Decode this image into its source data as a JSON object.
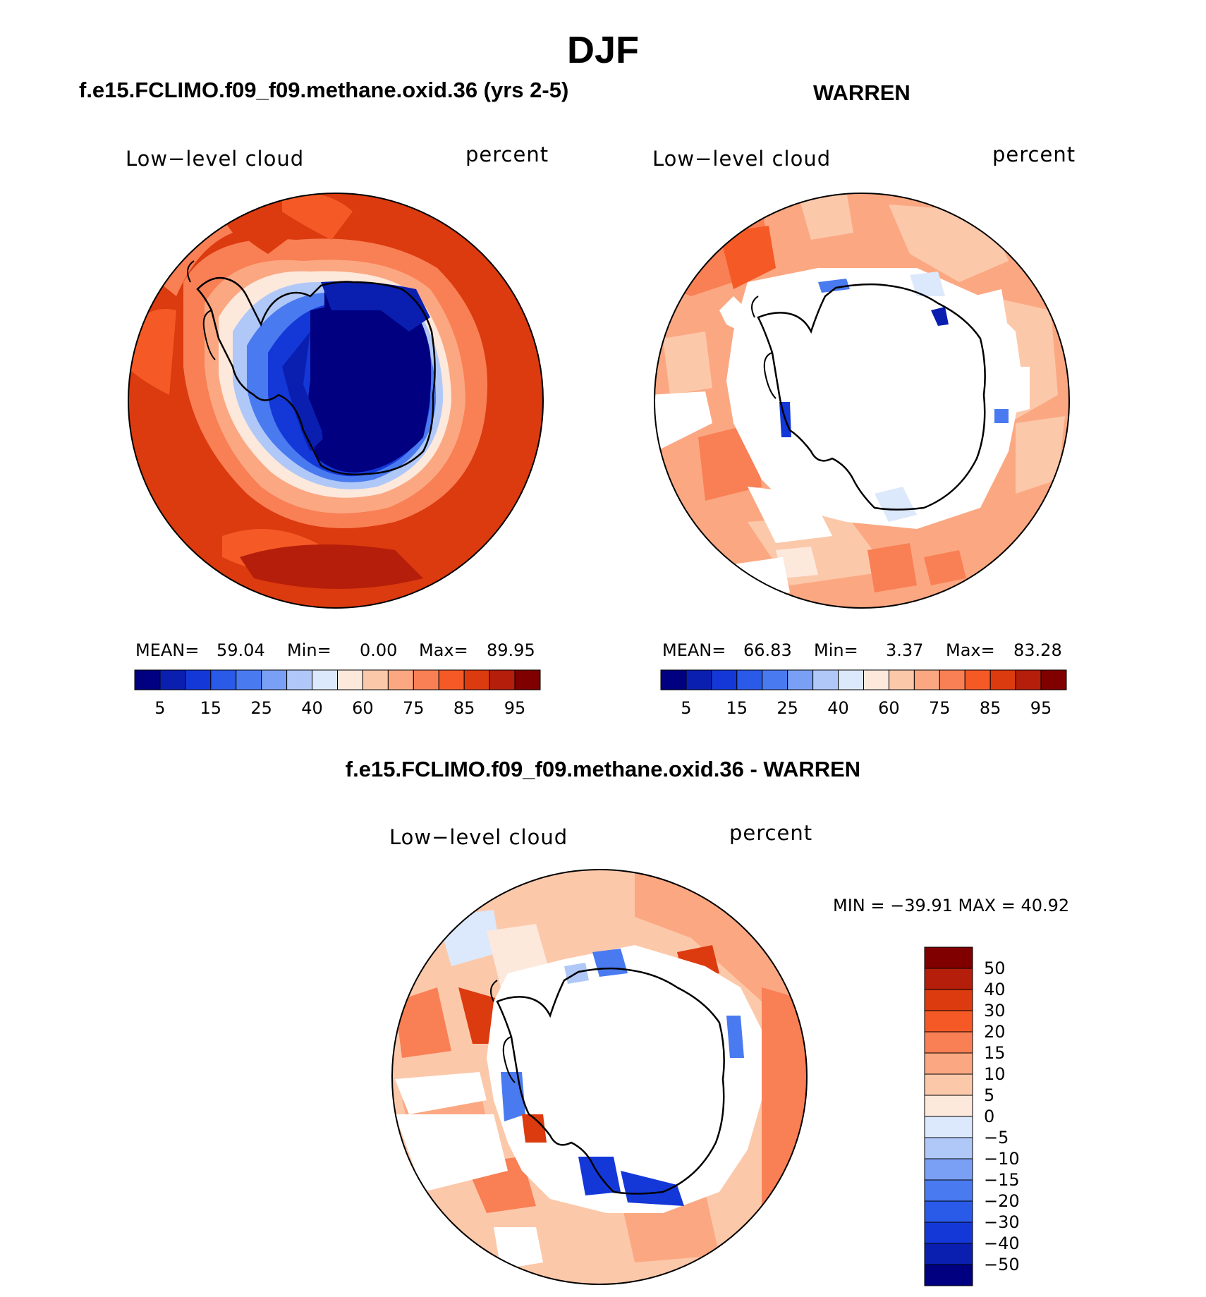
{
  "title": "DJF",
  "panel_left": {
    "case_title": "f.e15.FCLIMO.f09_f09.methane.oxid.36 (yrs 2-5)",
    "field_label": "Low−level cloud",
    "units_label": "percent",
    "stats": {
      "mean_label": "MEAN=",
      "mean_value": "59.04",
      "min_label": "Min=",
      "min_value": "0.00",
      "max_label": "Max=",
      "max_value": "89.95"
    }
  },
  "panel_right": {
    "case_title": "WARREN",
    "field_label": "Low−level cloud",
    "units_label": "percent",
    "stats": {
      "mean_label": "MEAN=",
      "mean_value": "66.83",
      "min_label": "Min=",
      "min_value": "3.37",
      "max_label": "Max=",
      "max_value": "83.28"
    }
  },
  "panel_diff": {
    "case_title": "f.e15.FCLIMO.f09_f09.methane.oxid.36 - WARREN",
    "field_label": "Low−level cloud",
    "units_label": "percent",
    "range_text": "MIN = −39.91 MAX =   40.92"
  },
  "colorbar_top": {
    "colors": [
      "#000080",
      "#0a1fb0",
      "#1438d8",
      "#2a5ae8",
      "#4a7af0",
      "#7aa0f5",
      "#b0c8f8",
      "#dce9fc",
      "#fde8dc",
      "#fcc8aa",
      "#fba882",
      "#f97f55",
      "#f55a26",
      "#dc3a0f",
      "#b41e0a",
      "#800000"
    ],
    "tick_labels": [
      "5",
      "15",
      "25",
      "40",
      "60",
      "75",
      "85",
      "95"
    ]
  },
  "colorbar_diff": {
    "colors": [
      "#800000",
      "#b41e0a",
      "#dc3a0f",
      "#f55a26",
      "#f97f55",
      "#fba882",
      "#fcc8aa",
      "#fde8dc",
      "#dce9fc",
      "#b0c8f8",
      "#7aa0f5",
      "#4a7af0",
      "#2a5ae8",
      "#1438d8",
      "#0a1fb0",
      "#000080"
    ],
    "tick_labels": [
      "50",
      "40",
      "30",
      "20",
      "15",
      "10",
      "5",
      "0",
      "−5",
      "−10",
      "−15",
      "−20",
      "−30",
      "−40",
      "−50"
    ]
  }
}
